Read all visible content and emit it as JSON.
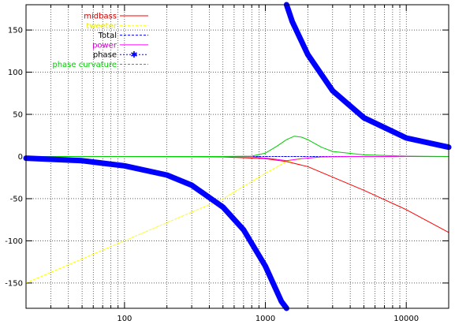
{
  "chart_data": {
    "type": "line",
    "title": "",
    "xlabel": "",
    "ylabel": "",
    "x_scale": "log",
    "xlim": [
      20,
      20000
    ],
    "ylim": [
      -180,
      180
    ],
    "grid": true,
    "legend_position": "top-left",
    "x_tick_labels": [
      "100",
      "1000",
      "10000"
    ],
    "x_ticks": [
      100,
      1000,
      10000
    ],
    "y_ticks": [
      -150,
      -100,
      -50,
      0,
      50,
      100,
      150
    ],
    "y_tick_labels": [
      "-150",
      "-100",
      "-50",
      "0",
      "50",
      "100",
      "150"
    ],
    "series": [
      {
        "name": "midbass",
        "color": "#ff0000",
        "style": "solid",
        "x": [
          20,
          100,
          500,
          1000,
          1414,
          2000,
          5000,
          10000,
          20000
        ],
        "y": [
          0,
          0,
          -0.5,
          -2.5,
          -6,
          -12,
          -40,
          -63,
          -90
        ]
      },
      {
        "name": "tweeter",
        "color": "#ffff00",
        "style": "dashed",
        "x": [
          20,
          100,
          500,
          1000,
          1414,
          2000,
          5000,
          10000,
          20000
        ],
        "y": [
          -150,
          -100,
          -50,
          -20,
          -6,
          -1.5,
          0,
          0,
          0
        ]
      },
      {
        "name": "Total",
        "color": "#0000ff",
        "style": "dashed",
        "x": [
          20,
          100,
          500,
          1000,
          1414,
          2000,
          5000,
          10000,
          20000
        ],
        "y": [
          0,
          0,
          0,
          0,
          0,
          0,
          0,
          0,
          0
        ]
      },
      {
        "name": "power",
        "color": "#ff00ff",
        "style": "solid",
        "x": [
          20,
          500,
          800,
          1100,
          1414,
          1800,
          2500,
          4000,
          20000
        ],
        "y": [
          0,
          0,
          -0.5,
          -2.5,
          -5,
          -2.5,
          -0.5,
          0,
          0
        ]
      },
      {
        "name": "phase",
        "color": "#0000ff",
        "style": "thick",
        "x": [
          20,
          50,
          100,
          200,
          300,
          500,
          700,
          1000,
          1300,
          1414,
          1414,
          1550,
          2000,
          3000,
          5000,
          10000,
          20000
        ],
        "y": [
          -2,
          -5,
          -11,
          -22,
          -34,
          -60,
          -87,
          -130,
          -172,
          -180,
          180,
          160,
          121,
          78,
          46,
          22,
          11
        ]
      },
      {
        "name": "phase curvature",
        "color": "#00cc00",
        "style": "dashed",
        "x": [
          20,
          500,
          800,
          1000,
          1200,
          1414,
          1600,
          1800,
          2000,
          2500,
          3000,
          5000,
          10000,
          20000
        ],
        "y": [
          0,
          0,
          0.5,
          4,
          12,
          20,
          24,
          23,
          20,
          11,
          6,
          2,
          0.5,
          0
        ]
      }
    ]
  }
}
